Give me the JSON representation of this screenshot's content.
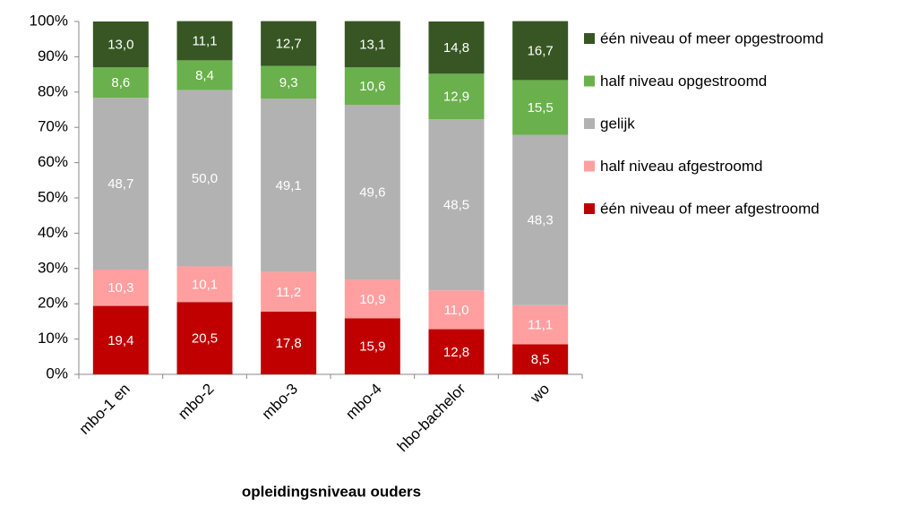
{
  "chart_data": {
    "type": "stacked-bar",
    "x_label": "opleidingsniveau ouders",
    "categories": [
      "mbo-1 en",
      "mbo-2",
      "mbo-3",
      "mbo-4",
      "hbo-bachelor",
      "wo"
    ],
    "series": [
      {
        "name": "één niveau of meer afgestroomd",
        "color": "#c00000",
        "values": [
          19.4,
          20.5,
          17.8,
          15.9,
          12.8,
          8.5
        ],
        "value_labels": [
          "19,4",
          "20,5",
          "17,8",
          "15,9",
          "12,8",
          "8,5"
        ]
      },
      {
        "name": "half niveau afgestroomd",
        "color": "#ff9f9f",
        "values": [
          10.3,
          10.1,
          11.2,
          10.9,
          11.0,
          11.1
        ],
        "value_labels": [
          "10,3",
          "10,1",
          "11,2",
          "10,9",
          "11,0",
          "11,1"
        ]
      },
      {
        "name": "gelijk",
        "color": "#b2b2b2",
        "values": [
          48.7,
          50.0,
          49.1,
          49.6,
          48.5,
          48.3
        ],
        "value_labels": [
          "48,7",
          "50,0",
          "49,1",
          "49,6",
          "48,5",
          "48,3"
        ]
      },
      {
        "name": "half niveau opgestroomd",
        "color": "#6ab04c",
        "values": [
          8.6,
          8.4,
          9.3,
          10.6,
          12.9,
          15.5
        ],
        "value_labels": [
          "8,6",
          "8,4",
          "9,3",
          "10,6",
          "12,9",
          "15,5"
        ]
      },
      {
        "name": "één niveau of meer opgestroomd",
        "color": "#375623",
        "values": [
          13.0,
          11.1,
          12.7,
          13.1,
          14.8,
          16.7
        ],
        "value_labels": [
          "13,0",
          "11,1",
          "12,7",
          "13,1",
          "14,8",
          "16,7"
        ]
      }
    ],
    "ylim": [
      0,
      100
    ],
    "yticks": [
      {
        "value": 0,
        "label": "0%"
      },
      {
        "value": 10,
        "label": "10%"
      },
      {
        "value": 20,
        "label": "20%"
      },
      {
        "value": 30,
        "label": "30%"
      },
      {
        "value": 40,
        "label": "40%"
      },
      {
        "value": 50,
        "label": "50%"
      },
      {
        "value": 60,
        "label": "60%"
      },
      {
        "value": 70,
        "label": "70%"
      },
      {
        "value": 80,
        "label": "80%"
      },
      {
        "value": 90,
        "label": "90%"
      },
      {
        "value": 100,
        "label": "100%"
      }
    ],
    "grid": false,
    "legend": "right"
  }
}
